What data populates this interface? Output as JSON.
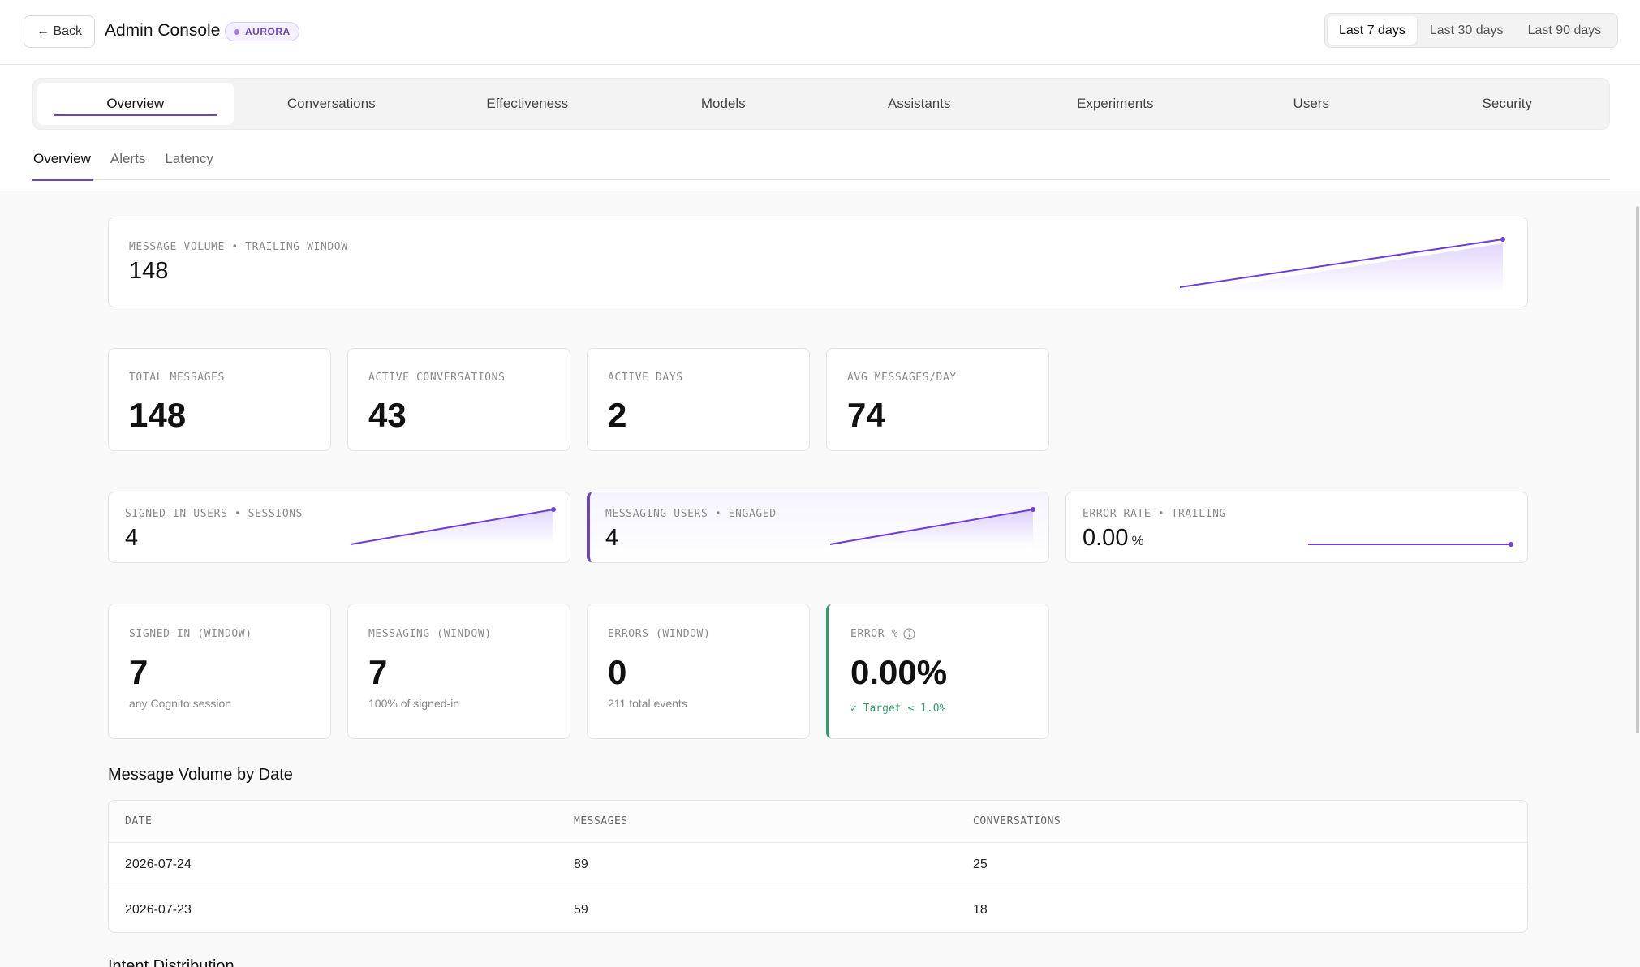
{
  "header": {
    "back_label": "← Back",
    "title": "Admin Console",
    "badge": "AURORA",
    "ranges": [
      {
        "label": "Last 7 days",
        "active": true
      },
      {
        "label": "Last 30 days",
        "active": false
      },
      {
        "label": "Last 90 days",
        "active": false
      }
    ]
  },
  "main_tabs": [
    "Overview",
    "Conversations",
    "Effectiveness",
    "Models",
    "Assistants",
    "Experiments",
    "Users",
    "Security"
  ],
  "sub_tabs": [
    "Overview",
    "Alerts",
    "Latency"
  ],
  "volume_card": {
    "label": "MESSAGE VOLUME • TRAILING WINDOW",
    "value": "148"
  },
  "stats": [
    {
      "label": "TOTAL MESSAGES",
      "value": "148"
    },
    {
      "label": "ACTIVE CONVERSATIONS",
      "value": "43"
    },
    {
      "label": "ACTIVE DAYS",
      "value": "2"
    },
    {
      "label": "AVG MESSAGES/DAY",
      "value": "74"
    }
  ],
  "trend_cards": [
    {
      "label": "SIGNED-IN USERS • SESSIONS",
      "value": "4",
      "unit": ""
    },
    {
      "label": "MESSAGING USERS • ENGAGED",
      "value": "4",
      "unit": ""
    },
    {
      "label": "ERROR RATE • TRAILING",
      "value": "0.00",
      "unit": "%"
    }
  ],
  "window_cards": [
    {
      "label": "SIGNED-IN (WINDOW)",
      "value": "7",
      "note": "any Cognito session"
    },
    {
      "label": "MESSAGING (WINDOW)",
      "value": "7",
      "note": "100% of signed-in"
    },
    {
      "label": "ERRORS (WINDOW)",
      "value": "0",
      "note": "211 total events"
    },
    {
      "label": "ERROR %",
      "value": "0.00%",
      "note": "✓ Target ≤ 1.0%"
    }
  ],
  "table": {
    "title": "Message Volume by Date",
    "columns": [
      "DATE",
      "MESSAGES",
      "CONVERSATIONS"
    ],
    "rows": [
      [
        "2026-07-24",
        "89",
        "25"
      ],
      [
        "2026-07-23",
        "59",
        "18"
      ]
    ]
  },
  "next_section": "Intent Distribution",
  "colors": {
    "accent": "#6b46c1",
    "success": "#2f9e6a"
  },
  "icons": {
    "info": "info-icon"
  }
}
